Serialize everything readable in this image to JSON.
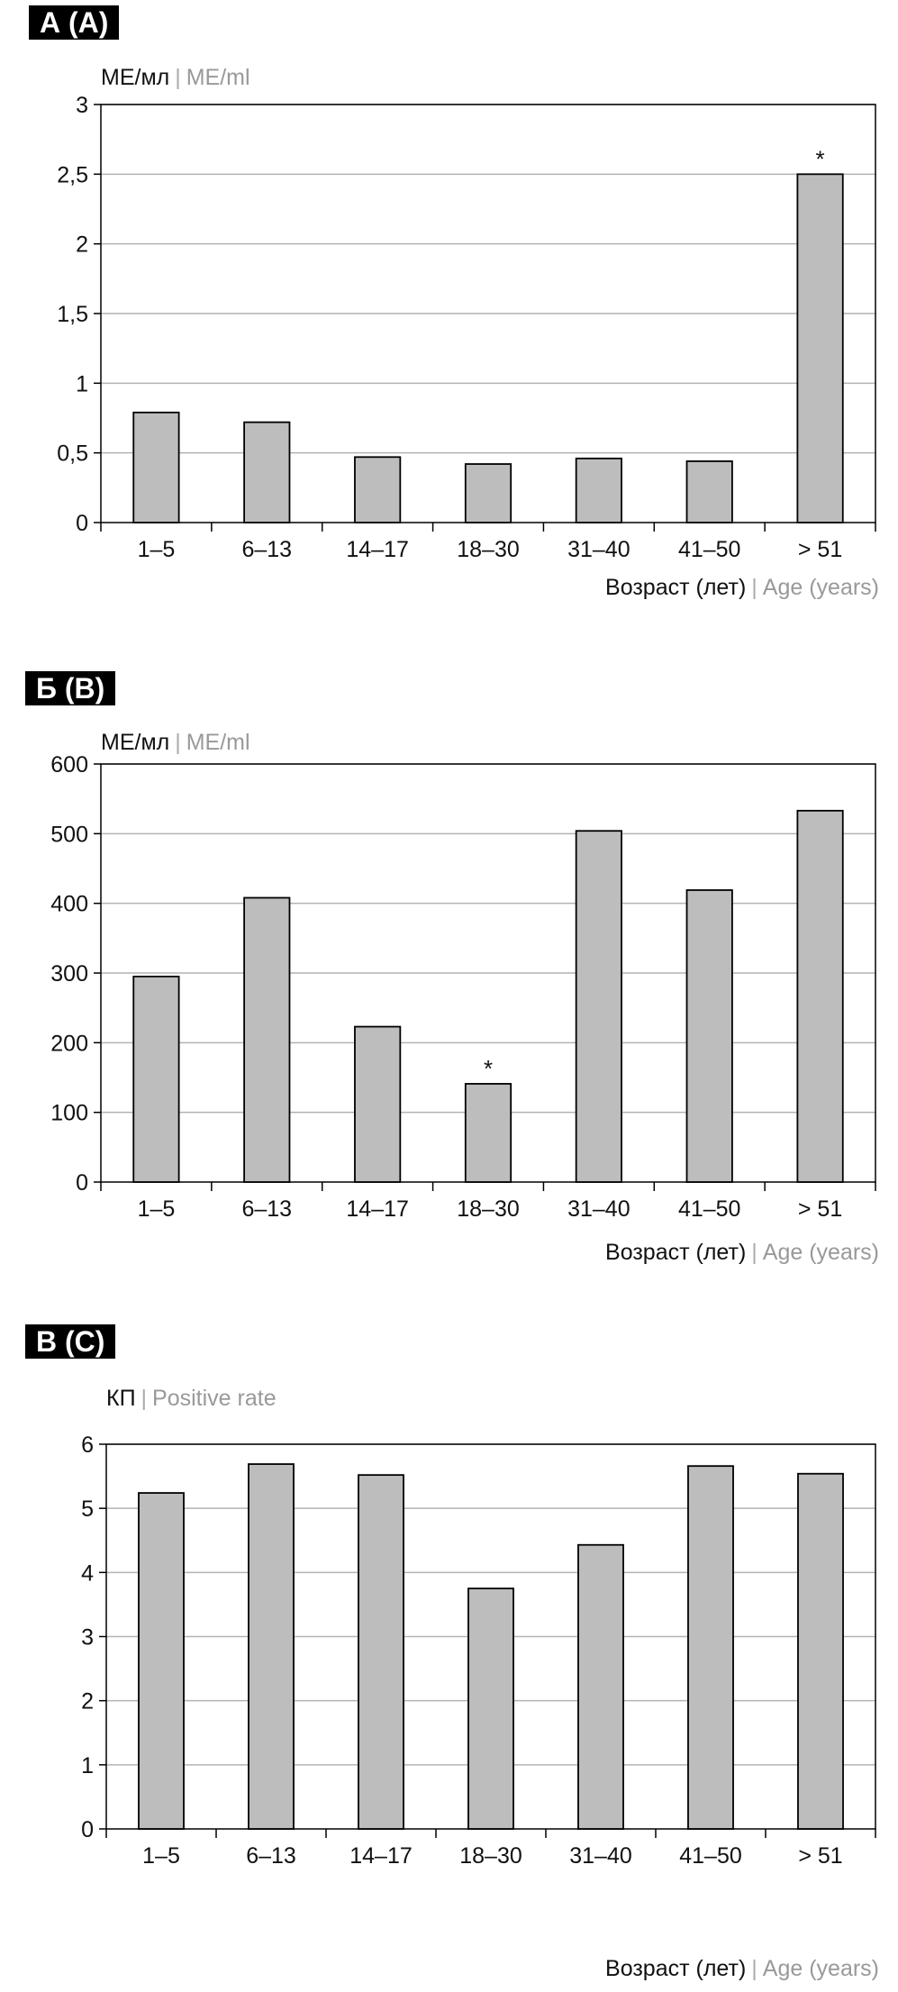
{
  "chart_data": [
    {
      "type": "bar",
      "panel_label": "А (A)",
      "unit_ru": "МЕ/мл",
      "unit_en": "ME/ml",
      "xlabel_ru": "Возраст (лет)",
      "xlabel_en": "Age (years)",
      "categories": [
        "1–5",
        "6–13",
        "14–17",
        "18–30",
        "31–40",
        "41–50",
        "> 51"
      ],
      "values": [
        0.79,
        0.72,
        0.47,
        0.42,
        0.46,
        0.44,
        2.5
      ],
      "markers": [
        "",
        "",
        "",
        "",
        "",
        "",
        "*"
      ],
      "ylim": [
        0,
        3
      ],
      "yticks": [
        0,
        0.5,
        1,
        1.5,
        2,
        2.5,
        3
      ],
      "ytick_labels": [
        "0",
        "0,5",
        "1",
        "1,5",
        "2",
        "2,5",
        "3"
      ],
      "grid": true,
      "bar_color": "#bdbdbd"
    },
    {
      "type": "bar",
      "panel_label": "Б (B)",
      "unit_ru": "МЕ/мл",
      "unit_en": "ME/ml",
      "xlabel_ru": "Возраст (лет)",
      "xlabel_en": "Age (years)",
      "categories": [
        "1–5",
        "6–13",
        "14–17",
        "18–30",
        "31–40",
        "41–50",
        "> 51"
      ],
      "values": [
        295,
        408,
        223,
        141,
        504,
        419,
        533
      ],
      "markers": [
        "",
        "",
        "",
        "*",
        "",
        "",
        ""
      ],
      "ylim": [
        0,
        600
      ],
      "yticks": [
        0,
        100,
        200,
        300,
        400,
        500,
        600
      ],
      "ytick_labels": [
        "0",
        "100",
        "200",
        "300",
        "400",
        "500",
        "600"
      ],
      "grid": true,
      "bar_color": "#bdbdbd"
    },
    {
      "type": "bar",
      "panel_label": "В (C)",
      "unit_ru": "КП",
      "unit_en": "Positive rate",
      "xlabel_ru": "Возраст (лет)",
      "xlabel_en": "Age (years)",
      "categories": [
        "1–5",
        "6–13",
        "14–17",
        "18–30",
        "31–40",
        "41–50",
        "> 51"
      ],
      "values": [
        5.24,
        5.69,
        5.52,
        3.75,
        4.43,
        5.66,
        5.54
      ],
      "markers": [
        "",
        "",
        "",
        "",
        "",
        "",
        ""
      ],
      "ylim": [
        0,
        6
      ],
      "yticks": [
        0,
        1,
        2,
        3,
        4,
        5,
        6
      ],
      "ytick_labels": [
        "0",
        "1",
        "2",
        "3",
        "4",
        "5",
        "6"
      ],
      "grid": true,
      "bar_color": "#bdbdbd"
    }
  ]
}
